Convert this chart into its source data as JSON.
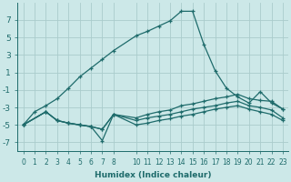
{
  "xlabel": "Humidex (Indice chaleur)",
  "background_color": "#cce8e8",
  "grid_color": "#aacccc",
  "line_color": "#1e6b6b",
  "xlim": [
    -0.5,
    23.5
  ],
  "ylim": [
    -8,
    9
  ],
  "xticks": [
    0,
    1,
    2,
    3,
    4,
    5,
    6,
    7,
    8,
    10,
    11,
    12,
    13,
    14,
    15,
    16,
    17,
    18,
    19,
    20,
    21,
    22,
    23
  ],
  "yticks": [
    -7,
    -5,
    -3,
    -1,
    1,
    3,
    5,
    7
  ],
  "curve_top_x": [
    0,
    1,
    2,
    3,
    4,
    5,
    6,
    7,
    8,
    10,
    11,
    12,
    13,
    14,
    15,
    16,
    17,
    18,
    19,
    20,
    21,
    22,
    23
  ],
  "curve_top_y": [
    -5.0,
    -3.5,
    -2.8,
    -2.0,
    -0.8,
    0.5,
    1.5,
    2.5,
    3.5,
    5.2,
    5.7,
    6.3,
    6.9,
    8.0,
    8.0,
    4.2,
    1.2,
    -0.8,
    -1.8,
    -2.5,
    -1.2,
    -2.5,
    -3.2
  ],
  "curve_mid1_x": [
    0,
    2,
    3,
    4,
    5,
    6,
    7,
    8,
    10,
    11,
    12,
    13,
    14,
    15,
    16,
    17,
    18,
    19,
    20,
    21,
    22,
    23
  ],
  "curve_mid1_y": [
    -5.0,
    -3.5,
    -4.5,
    -4.8,
    -5.0,
    -5.2,
    -5.5,
    -3.8,
    -4.2,
    -3.8,
    -3.5,
    -3.3,
    -2.8,
    -2.6,
    -2.3,
    -2.0,
    -1.8,
    -1.5,
    -2.0,
    -2.2,
    -2.3,
    -3.2
  ],
  "curve_mid2_x": [
    0,
    2,
    3,
    4,
    5,
    6,
    7,
    8,
    10,
    11,
    12,
    13,
    14,
    15,
    16,
    17,
    18,
    19,
    20,
    21,
    22,
    23
  ],
  "curve_mid2_y": [
    -5.0,
    -3.5,
    -4.5,
    -4.8,
    -5.0,
    -5.2,
    -5.5,
    -3.8,
    -4.5,
    -4.2,
    -4.0,
    -3.8,
    -3.5,
    -3.2,
    -3.0,
    -2.8,
    -2.5,
    -2.3,
    -2.8,
    -3.0,
    -3.3,
    -4.2
  ],
  "curve_bot_x": [
    0,
    2,
    3,
    4,
    5,
    6,
    7,
    8,
    10,
    11,
    12,
    13,
    14,
    15,
    16,
    17,
    18,
    19,
    20,
    21,
    22,
    23
  ],
  "curve_bot_y": [
    -5.0,
    -3.5,
    -4.5,
    -4.8,
    -5.0,
    -5.2,
    -6.8,
    -3.8,
    -5.0,
    -4.8,
    -4.5,
    -4.3,
    -4.0,
    -3.8,
    -3.5,
    -3.2,
    -3.0,
    -2.8,
    -3.2,
    -3.5,
    -3.8,
    -4.5
  ]
}
